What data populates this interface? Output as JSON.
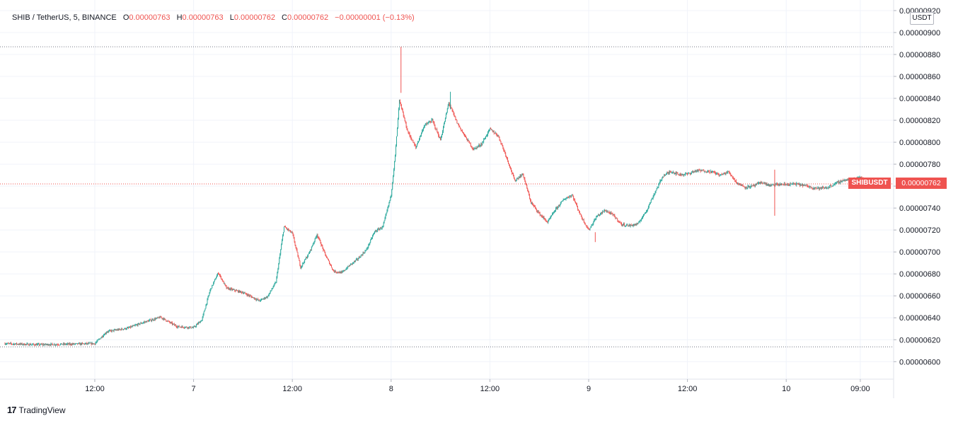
{
  "legend": {
    "symbol": "SHIB / TetherUS, 5, BINANCE",
    "open_label": "O",
    "open": "0.00000763",
    "high_label": "H",
    "high": "0.00000763",
    "low_label": "L",
    "low": "0.00000762",
    "close_label": "C",
    "close": "0.00000762",
    "change": "−0.00000001 (−0.13%)"
  },
  "price_axis": {
    "unit": "USDT",
    "symbol_tag": "SHIBUSDT",
    "last_price": "0.00000762"
  },
  "footer": {
    "logo": "17",
    "brand": "TradingView"
  },
  "colors": {
    "up": "#26a69a",
    "down": "#ef5350",
    "grid": "#f0f3fa"
  },
  "chart_data": {
    "type": "candlestick",
    "title": "SHIB / TetherUS, 5, BINANCE",
    "ylim": [
      5.9e-06,
      9.21e-06
    ],
    "y_ticks": [
      "0.00000920",
      "0.00000900",
      "0.00000880",
      "0.00000860",
      "0.00000840",
      "0.00000820",
      "0.00000800",
      "0.00000780",
      "0.00000760",
      "0.00000740",
      "0.00000720",
      "0.00000700",
      "0.00000680",
      "0.00000660",
      "0.00000640",
      "0.00000620",
      "0.00000600"
    ],
    "x_ticks": [
      "12:00",
      "7",
      "12:00",
      "8",
      "12:00",
      "9",
      "12:00",
      "10",
      "09:00"
    ],
    "x_tick_hours": [
      12,
      24,
      36,
      48,
      60,
      72,
      84,
      96,
      105
    ],
    "x_range_hours": [
      1,
      107.5
    ],
    "high_line": 8.87e-06,
    "low_line": 6.135e-06,
    "last_price": 7.62e-06,
    "grid": true,
    "path": [
      [
        1,
        6.165e-06
      ],
      [
        5,
        6.155e-06
      ],
      [
        9,
        6.16e-06
      ],
      [
        12,
        6.165e-06
      ],
      [
        13.5,
        6.275e-06
      ],
      [
        16,
        6.305e-06
      ],
      [
        18,
        6.36e-06
      ],
      [
        20,
        6.405e-06
      ],
      [
        22,
        6.32e-06
      ],
      [
        24,
        6.31e-06
      ],
      [
        25,
        6.38e-06
      ],
      [
        26,
        6.65e-06
      ],
      [
        27,
        6.81e-06
      ],
      [
        28,
        6.67e-06
      ],
      [
        30,
        6.63e-06
      ],
      [
        32,
        6.555e-06
      ],
      [
        33,
        6.595e-06
      ],
      [
        34,
        6.725e-06
      ],
      [
        35,
        7.23e-06
      ],
      [
        36,
        7.17e-06
      ],
      [
        37,
        6.86e-06
      ],
      [
        38,
        6.985e-06
      ],
      [
        39,
        7.16e-06
      ],
      [
        40,
        6.975e-06
      ],
      [
        41,
        6.825e-06
      ],
      [
        42,
        6.81e-06
      ],
      [
        43,
        6.88e-06
      ],
      [
        44,
        6.94e-06
      ],
      [
        45,
        7.02e-06
      ],
      [
        46,
        7.185e-06
      ],
      [
        47,
        7.23e-06
      ],
      [
        48,
        7.52e-06
      ],
      [
        48.5,
        7.88e-06
      ],
      [
        49,
        8.38e-06
      ],
      [
        50,
        8.1e-06
      ],
      [
        51,
        7.95e-06
      ],
      [
        52,
        8.15e-06
      ],
      [
        53,
        8.2e-06
      ],
      [
        54,
        8.02e-06
      ],
      [
        55,
        8.36e-06
      ],
      [
        56,
        8.18e-06
      ],
      [
        57,
        8.05e-06
      ],
      [
        58,
        7.935e-06
      ],
      [
        59,
        7.985e-06
      ],
      [
        60,
        8.12e-06
      ],
      [
        61,
        8.06e-06
      ],
      [
        62,
        7.87e-06
      ],
      [
        63,
        7.65e-06
      ],
      [
        64,
        7.71e-06
      ],
      [
        65,
        7.45e-06
      ],
      [
        66,
        7.35e-06
      ],
      [
        67,
        7.27e-06
      ],
      [
        68,
        7.39e-06
      ],
      [
        69,
        7.48e-06
      ],
      [
        70,
        7.52e-06
      ],
      [
        71,
        7.335e-06
      ],
      [
        72,
        7.2e-06
      ],
      [
        73,
        7.325e-06
      ],
      [
        74,
        7.38e-06
      ],
      [
        75,
        7.335e-06
      ],
      [
        76,
        7.25e-06
      ],
      [
        77,
        7.24e-06
      ],
      [
        78,
        7.255e-06
      ],
      [
        79,
        7.375e-06
      ],
      [
        80,
        7.535e-06
      ],
      [
        81,
        7.69e-06
      ],
      [
        82,
        7.735e-06
      ],
      [
        83,
        7.705e-06
      ],
      [
        84,
        7.71e-06
      ],
      [
        85,
        7.74e-06
      ],
      [
        86,
        7.74e-06
      ],
      [
        87,
        7.73e-06
      ],
      [
        88,
        7.7e-06
      ],
      [
        89,
        7.73e-06
      ],
      [
        90,
        7.63e-06
      ],
      [
        91,
        7.59e-06
      ],
      [
        92,
        7.6e-06
      ],
      [
        93,
        7.635e-06
      ],
      [
        94,
        7.605e-06
      ],
      [
        95,
        7.615e-06
      ],
      [
        96,
        7.615e-06
      ],
      [
        97,
        7.62e-06
      ],
      [
        98,
        7.61e-06
      ],
      [
        99,
        7.59e-06
      ],
      [
        100,
        7.58e-06
      ],
      [
        101,
        7.585e-06
      ],
      [
        102,
        7.625e-06
      ],
      [
        103,
        7.655e-06
      ],
      [
        104,
        7.66e-06
      ],
      [
        105,
        7.685e-06
      ],
      [
        105.8,
        7.62e-06
      ]
    ]
  }
}
